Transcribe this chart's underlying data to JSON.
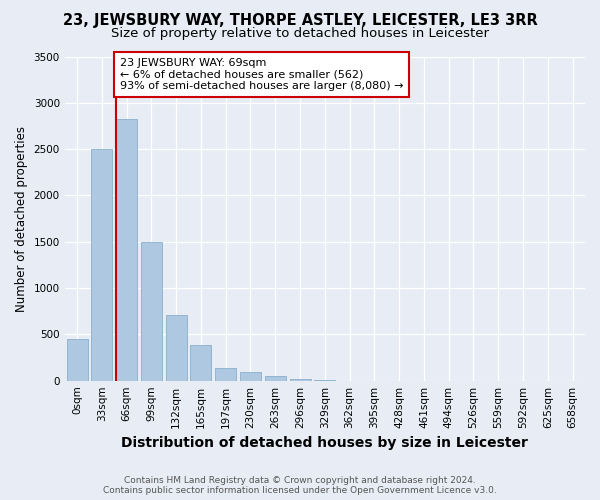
{
  "title": "23, JEWSBURY WAY, THORPE ASTLEY, LEICESTER, LE3 3RR",
  "subtitle": "Size of property relative to detached houses in Leicester",
  "xlabel": "Distribution of detached houses by size in Leicester",
  "ylabel": "Number of detached properties",
  "footnote1": "Contains HM Land Registry data © Crown copyright and database right 2024.",
  "footnote2": "Contains public sector information licensed under the Open Government Licence v3.0.",
  "bar_labels": [
    "0sqm",
    "33sqm",
    "66sqm",
    "99sqm",
    "132sqm",
    "165sqm",
    "197sqm",
    "230sqm",
    "263sqm",
    "296sqm",
    "329sqm",
    "362sqm",
    "395sqm",
    "428sqm",
    "461sqm",
    "494sqm",
    "526sqm",
    "559sqm",
    "592sqm",
    "625sqm",
    "658sqm"
  ],
  "bar_values": [
    450,
    2500,
    2820,
    1500,
    710,
    390,
    140,
    90,
    50,
    20,
    10,
    0,
    0,
    0,
    0,
    0,
    0,
    0,
    0,
    0,
    0
  ],
  "bar_color": "#adc8e0",
  "bar_edge_color": "#8ab0cc",
  "ylim": [
    0,
    3500
  ],
  "yticks": [
    0,
    500,
    1000,
    1500,
    2000,
    2500,
    3000,
    3500
  ],
  "vline_color": "#cc0000",
  "vline_bin": 2,
  "annotation_text": "23 JEWSBURY WAY: 69sqm\n← 6% of detached houses are smaller (562)\n93% of semi-detached houses are larger (8,080) →",
  "annotation_box_edgecolor": "#cc0000",
  "annotation_bg": "#ffffff",
  "bg_color": "#e8edf5",
  "grid_color": "#ffffff",
  "title_fontsize": 10.5,
  "subtitle_fontsize": 9.5,
  "xlabel_fontsize": 10,
  "ylabel_fontsize": 8.5,
  "tick_fontsize": 7.5,
  "annotation_fontsize": 8.0,
  "footnote_fontsize": 6.5
}
